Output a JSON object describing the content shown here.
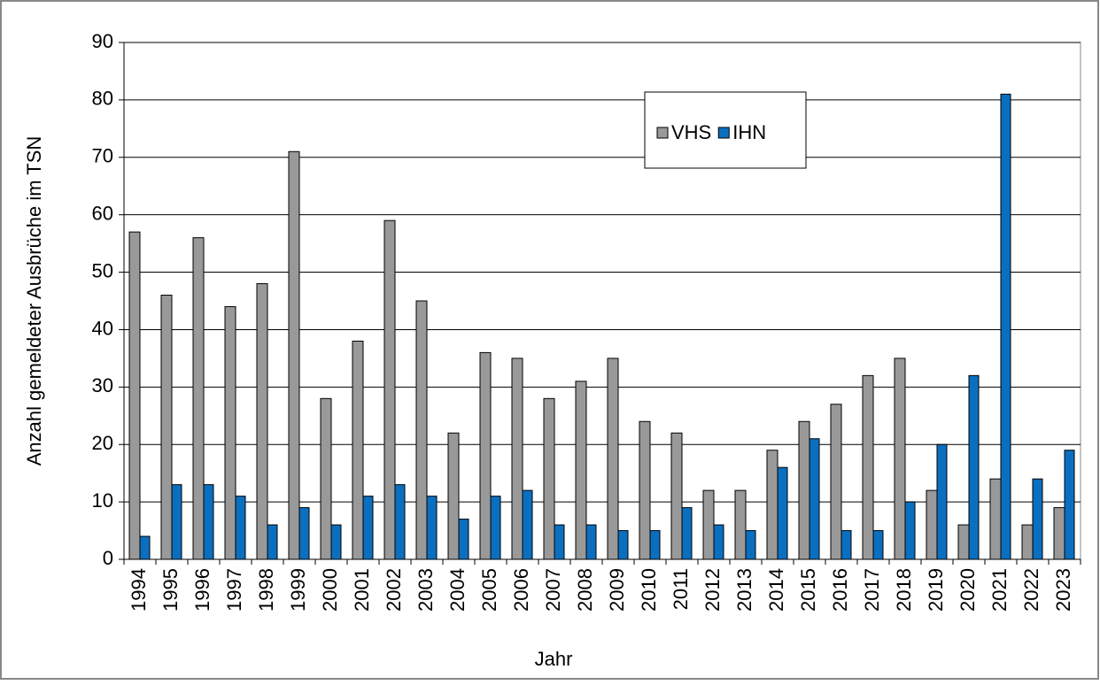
{
  "chart_data": {
    "type": "bar",
    "y_label": "Anzahl gemeldeter Ausbrüche im TSN",
    "x_label": "Jahr",
    "categories": [
      "1994",
      "1995",
      "1996",
      "1997",
      "1998",
      "1999",
      "2000",
      "2001",
      "2002",
      "2003",
      "2004",
      "2005",
      "2006",
      "2007",
      "2008",
      "2009",
      "2010",
      "2011",
      "2012",
      "2013",
      "2014",
      "2015",
      "2016",
      "2017",
      "2018",
      "2019",
      "2020",
      "2021",
      "2022",
      "2023"
    ],
    "series": [
      {
        "name": "VHS",
        "color": "#999999",
        "values": [
          57,
          46,
          56,
          44,
          48,
          71,
          28,
          38,
          59,
          45,
          22,
          36,
          35,
          28,
          31,
          35,
          24,
          22,
          12,
          12,
          19,
          24,
          27,
          32,
          35,
          12,
          6,
          14,
          6,
          9
        ]
      },
      {
        "name": "IHN",
        "color": "#0b6fc0",
        "values": [
          4,
          13,
          13,
          11,
          6,
          9,
          6,
          11,
          13,
          11,
          7,
          11,
          12,
          6,
          6,
          5,
          5,
          9,
          6,
          5,
          16,
          21,
          5,
          5,
          10,
          20,
          32,
          81,
          14,
          19
        ]
      }
    ],
    "ylim": [
      0,
      90
    ],
    "yticks": [
      0,
      10,
      20,
      30,
      40,
      50,
      60,
      70,
      80,
      90
    ],
    "grid": true
  }
}
